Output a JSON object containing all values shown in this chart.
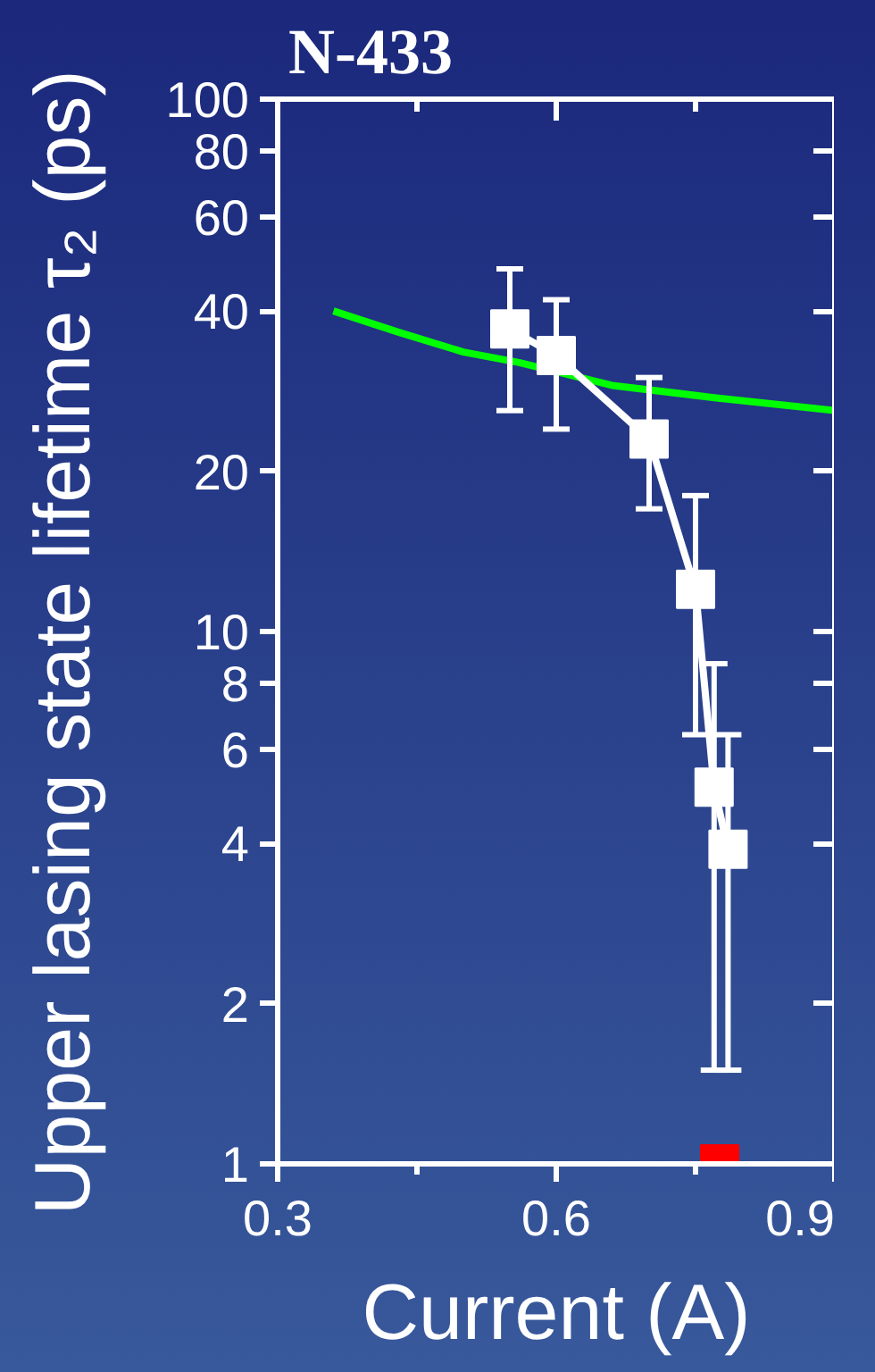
{
  "chart_data": {
    "type": "line",
    "title": "N-433",
    "xlabel": "Current (A)",
    "ylabel": "Upper lasing state lifetime  τ₂ (ps)",
    "xlim": [
      0.3,
      0.9
    ],
    "ylim": [
      1,
      100
    ],
    "xticks": [
      0.3,
      {
        "value": 0.45,
        "label": null
      },
      0.6,
      {
        "value": 0.75,
        "label": null
      },
      0.9
    ],
    "yticks": [
      1,
      2,
      4,
      6,
      8,
      10,
      20,
      40,
      60,
      80,
      100
    ],
    "log": "y",
    "series": [
      {
        "color": "#00ff00",
        "x": [
          0.36,
          0.43,
          0.5,
          0.56,
          0.66,
          0.77,
          0.9
        ],
        "values": [
          40,
          36.5,
          33.5,
          32,
          29,
          27.5,
          26
        ]
      },
      {
        "color": "#ffffff",
        "marker": "square",
        "x": [
          0.55,
          0.6,
          0.7,
          0.75,
          0.77,
          0.785
        ],
        "values": [
          37,
          33,
          23,
          12,
          5.1,
          3.9
        ],
        "errors": [
          [
            26,
            48
          ],
          [
            24,
            42
          ],
          [
            17,
            30
          ],
          [
            6.4,
            18
          ],
          [
            1.5,
            8.7
          ],
          [
            1.5,
            6.4
          ]
        ]
      },
      {
        "type": "scatter",
        "color": "#ff0000",
        "marker": "square",
        "x": [
          0.776
        ],
        "values": [
          1
        ]
      }
    ]
  }
}
